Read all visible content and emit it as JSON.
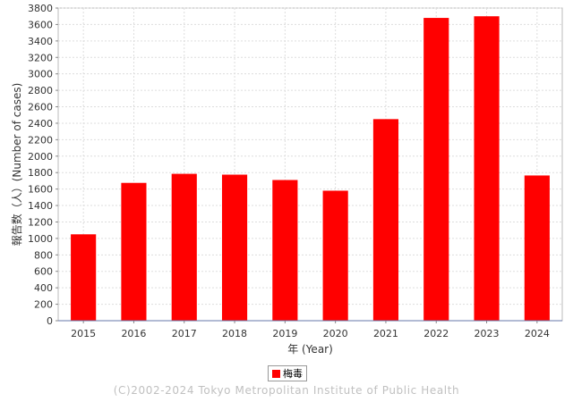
{
  "chart_data": {
    "type": "bar",
    "categories": [
      "2015",
      "2016",
      "2017",
      "2018",
      "2019",
      "2020",
      "2021",
      "2022",
      "2023",
      "2024"
    ],
    "series": [
      {
        "name": "梅毒",
        "color": "#ff0000",
        "values": [
          1050,
          1675,
          1785,
          1775,
          1710,
          1580,
          2450,
          3680,
          3700,
          1765
        ]
      }
    ],
    "xlabel": "年 (Year)",
    "ylabel": "報告数（人）(Number of cases)",
    "ylim": [
      0,
      3800
    ],
    "ytick_step": 200,
    "grid": true,
    "legend_position": "bottom-center"
  },
  "footer": {
    "copyright": "(C)2002-2024 Tokyo Metropolitan Institute of Public Health"
  }
}
